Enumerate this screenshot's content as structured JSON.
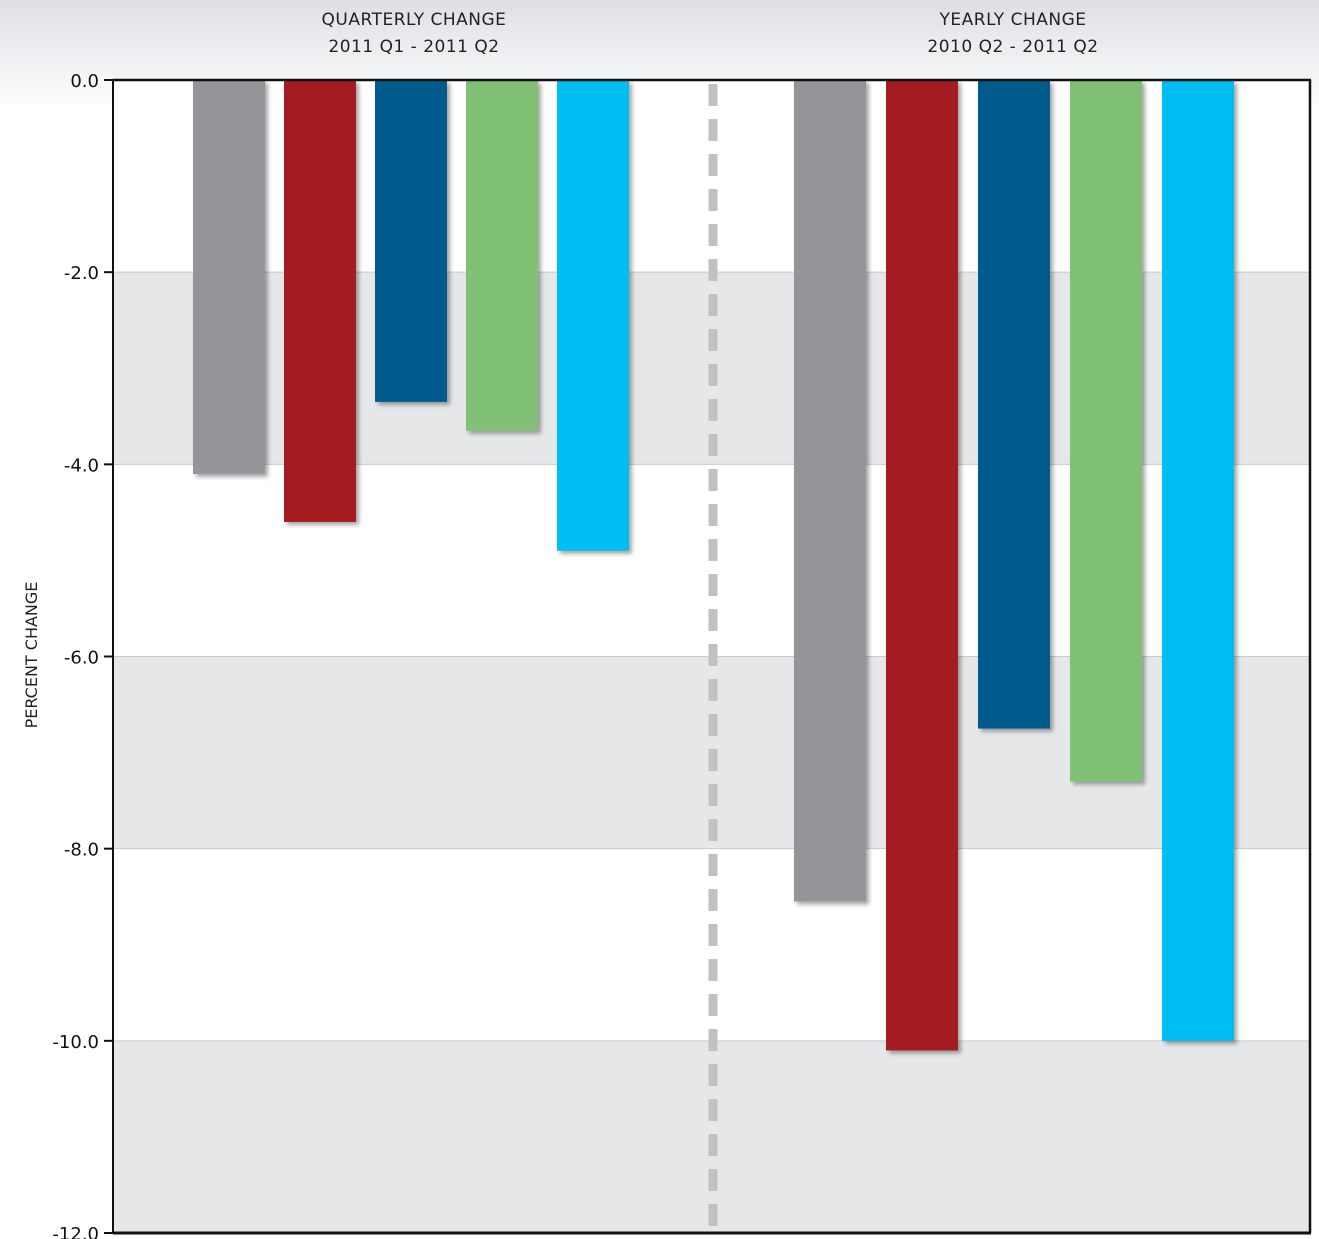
{
  "chart_data": {
    "type": "bar",
    "ylabel": "PERCENT CHANGE",
    "ylim": [
      -12,
      0
    ],
    "yticks": [
      "0.0",
      "-2.0",
      "-4.0",
      "-6.0",
      "-8.0",
      "-10.0",
      "-12.0"
    ],
    "grid": "alternating horizontal bands",
    "groups": [
      {
        "title_line1": "QUARTERLY CHANGE",
        "title_line2": "2011 Q1 - 2011 Q2"
      },
      {
        "title_line1": "YEARLY CHANGE",
        "title_line2": "2010 Q2 - 2011 Q2"
      }
    ],
    "series": [
      {
        "color": "#939598",
        "values": [
          -4.1,
          -8.55
        ]
      },
      {
        "color": "#a41e22",
        "values": [
          -4.6,
          -10.1
        ]
      },
      {
        "color": "#005a8c",
        "values": [
          -3.35,
          -6.75
        ]
      },
      {
        "color": "#80c176",
        "values": [
          -3.65,
          -7.3
        ]
      },
      {
        "color": "#00bef2",
        "values": [
          -4.9,
          -10.0
        ]
      }
    ],
    "divider": "dashed vertical line between groups"
  }
}
